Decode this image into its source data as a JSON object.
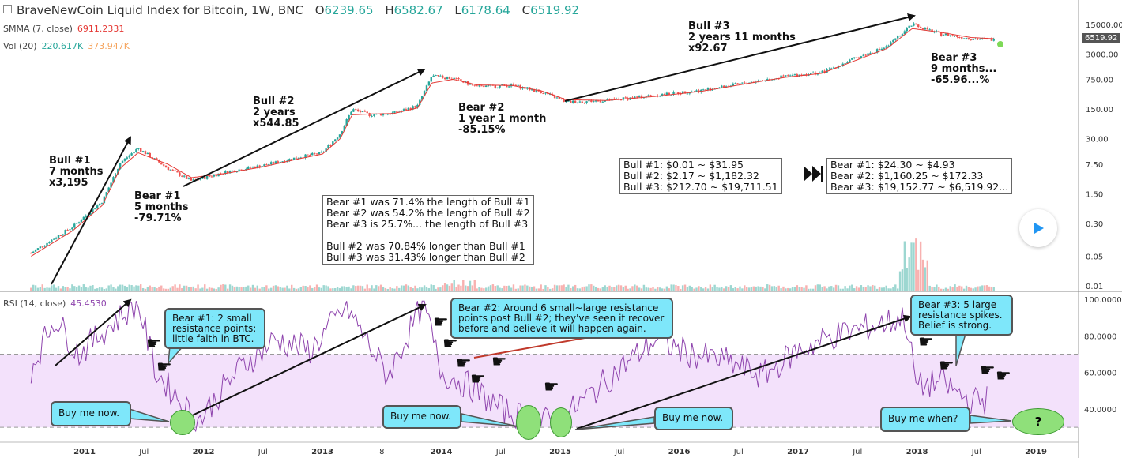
{
  "header": {
    "title": "BraveNewCoin Liquid Index for Bitcoin, 1W, BNC",
    "open_label": "O",
    "open_value": "6239.65",
    "high_label": "H",
    "high_value": "6582.67",
    "low_label": "L",
    "low_value": "6178.64",
    "close_label": "C",
    "close_value": "6519.92"
  },
  "indicators": {
    "smma_label": "SMMA (7, close)",
    "smma_value": "6911.2331",
    "vol_label": "Vol (20)",
    "vol_value1": "220.617K",
    "vol_value2": "373.947K",
    "rsi_label": "RSI (14, close)",
    "rsi_value": "45.4530"
  },
  "price_tag": "6519.92",
  "colors": {
    "up": "#26a69a",
    "down": "#ef5350",
    "smma": "#e53935",
    "rsi": "#8e44ad",
    "rsi_band": "#f3e1fb",
    "bubble": "#7ee7fa",
    "oval": "#8fe07a"
  },
  "annotations": {
    "bull1": "Bull #1\n7 months\nx3,195",
    "bear1": "Bear #1\n5 months\n-79.71%",
    "bull2": "Bull #2\n2 years\nx544.85",
    "bear2": "Bear #2\n1 year 1 month\n-85.15%",
    "bull3": "Bull #3\n2 years 11 months\nx92.67",
    "bear3": "Bear #3\n9 months...\n-65.96...%"
  },
  "boxes": {
    "length": "Bear #1 was 71.4% the length of Bull #1\nBear #2 was 54.2% the length of Bull #2\nBear #3 is 25.7%... the length of Bull #3\n\nBull #2 was 70.84% longer than Bull #1\nBull #3 was 31.43% longer than Bull #2",
    "bull_ranges": "Bull #1: $0.01 ~ $31.95\nBull #2: $2.17 ~ $1,182.32\nBull #3: $212.70 ~ $19,711.51",
    "bear_ranges": "Bear #1: $24.30 ~ $4.93\nBear #2: $1,160.25 ~ $172.33\nBear #3: $19,152.77 ~ $6,519.92..."
  },
  "bubbles": {
    "bear1": "Bear #1: 2 small\nresistance points;\nlittle faith in BTC.",
    "bear2": "Bear #2: Around 6 small~large resistance\npoints post Bull #2; they've seen it recover\nbefore and believe it will happen again.",
    "bear3": "Bear #3: 5 large\nresistance spikes.\nBelief is strong.",
    "buy1": "Buy me now.",
    "buy2": "Buy me now.",
    "buy3": "Buy me now.",
    "buy4": "Buy me when?",
    "question": "?"
  },
  "chart_data": [
    {
      "type": "candlestick",
      "title": "BraveNewCoin Liquid Index for Bitcoin, 1W, BNC",
      "yscale": "log",
      "y_ticks": [
        "15000.00",
        "3000.00",
        "750.00",
        "150.00",
        "30.00",
        "7.50",
        "1.50",
        "0.30",
        "0.05",
        "0.01"
      ],
      "x_ticks": [
        "2011",
        "Jul",
        "2012",
        "Jul",
        "2013",
        "8",
        "2014",
        "Jul",
        "2015",
        "Jul",
        "2016",
        "Jul",
        "2017",
        "Jul",
        "2018",
        "Jul",
        "2019"
      ],
      "x": [
        2010.55,
        2010.9,
        2011.15,
        2011.3,
        2011.45,
        2011.7,
        2011.9,
        2012.2,
        2012.5,
        2012.8,
        2013.0,
        2013.15,
        2013.25,
        2013.4,
        2013.6,
        2013.8,
        2013.92,
        2014.1,
        2014.3,
        2014.6,
        2014.85,
        2015.05,
        2015.4,
        2015.8,
        2016.2,
        2016.6,
        2016.9,
        2017.2,
        2017.5,
        2017.75,
        2017.96,
        2018.2,
        2018.45,
        2018.65
      ],
      "series": [
        {
          "values": [
            0.06,
            0.25,
            1.0,
            8.0,
            18.0,
            6.0,
            3.0,
            5.0,
            7.0,
            11.0,
            14.0,
            40.0,
            150.0,
            110.0,
            120.0,
            180.0,
            900.0,
            800.0,
            500.0,
            550.0,
            380.0,
            220.0,
            240.0,
            320.0,
            420.0,
            650.0,
            900.0,
            1100.0,
            2500.0,
            4500.0,
            15000.0,
            9000.0,
            7000.0,
            6519.92
          ]
        },
        {
          "name": "SMMA (7, close)",
          "values": [
            0.05,
            0.2,
            0.8,
            6.0,
            14.0,
            7.5,
            3.6,
            4.6,
            6.5,
            10.0,
            13.0,
            30.0,
            110.0,
            115.0,
            118.0,
            160.0,
            620.0,
            760.0,
            560.0,
            540.0,
            400.0,
            250.0,
            240.0,
            300.0,
            400.0,
            620.0,
            850.0,
            1050.0,
            2200.0,
            4100.0,
            12000.0,
            9800.0,
            7400.0,
            6911.2331
          ]
        }
      ]
    },
    {
      "type": "line",
      "title": "RSI (14, close)",
      "y_ticks": [
        "100.0000",
        "80.0000",
        "60.0000",
        "40.0000"
      ],
      "ylim": [
        25,
        100
      ],
      "band": [
        30,
        70
      ],
      "x": [
        2010.55,
        2010.75,
        2010.95,
        2011.2,
        2011.45,
        2011.6,
        2011.8,
        2011.95,
        2012.3,
        2012.6,
        2012.9,
        2013.2,
        2013.35,
        2013.55,
        2013.85,
        2014.0,
        2014.25,
        2014.5,
        2014.8,
        2015.0,
        2015.2,
        2015.5,
        2015.8,
        2016.1,
        2016.4,
        2016.7,
        2017.0,
        2017.3,
        2017.6,
        2017.9,
        2018.0,
        2018.2,
        2018.45,
        2018.6
      ],
      "series": [
        {
          "name": "RSI (14, close)",
          "values": [
            62,
            90,
            70,
            85,
            98,
            60,
            45,
            33,
            62,
            78,
            72,
            96,
            80,
            58,
            98,
            60,
            52,
            40,
            33,
            34,
            45,
            62,
            78,
            70,
            66,
            58,
            72,
            80,
            85,
            90,
            52,
            55,
            44,
            45.453
          ]
        }
      ]
    }
  ]
}
